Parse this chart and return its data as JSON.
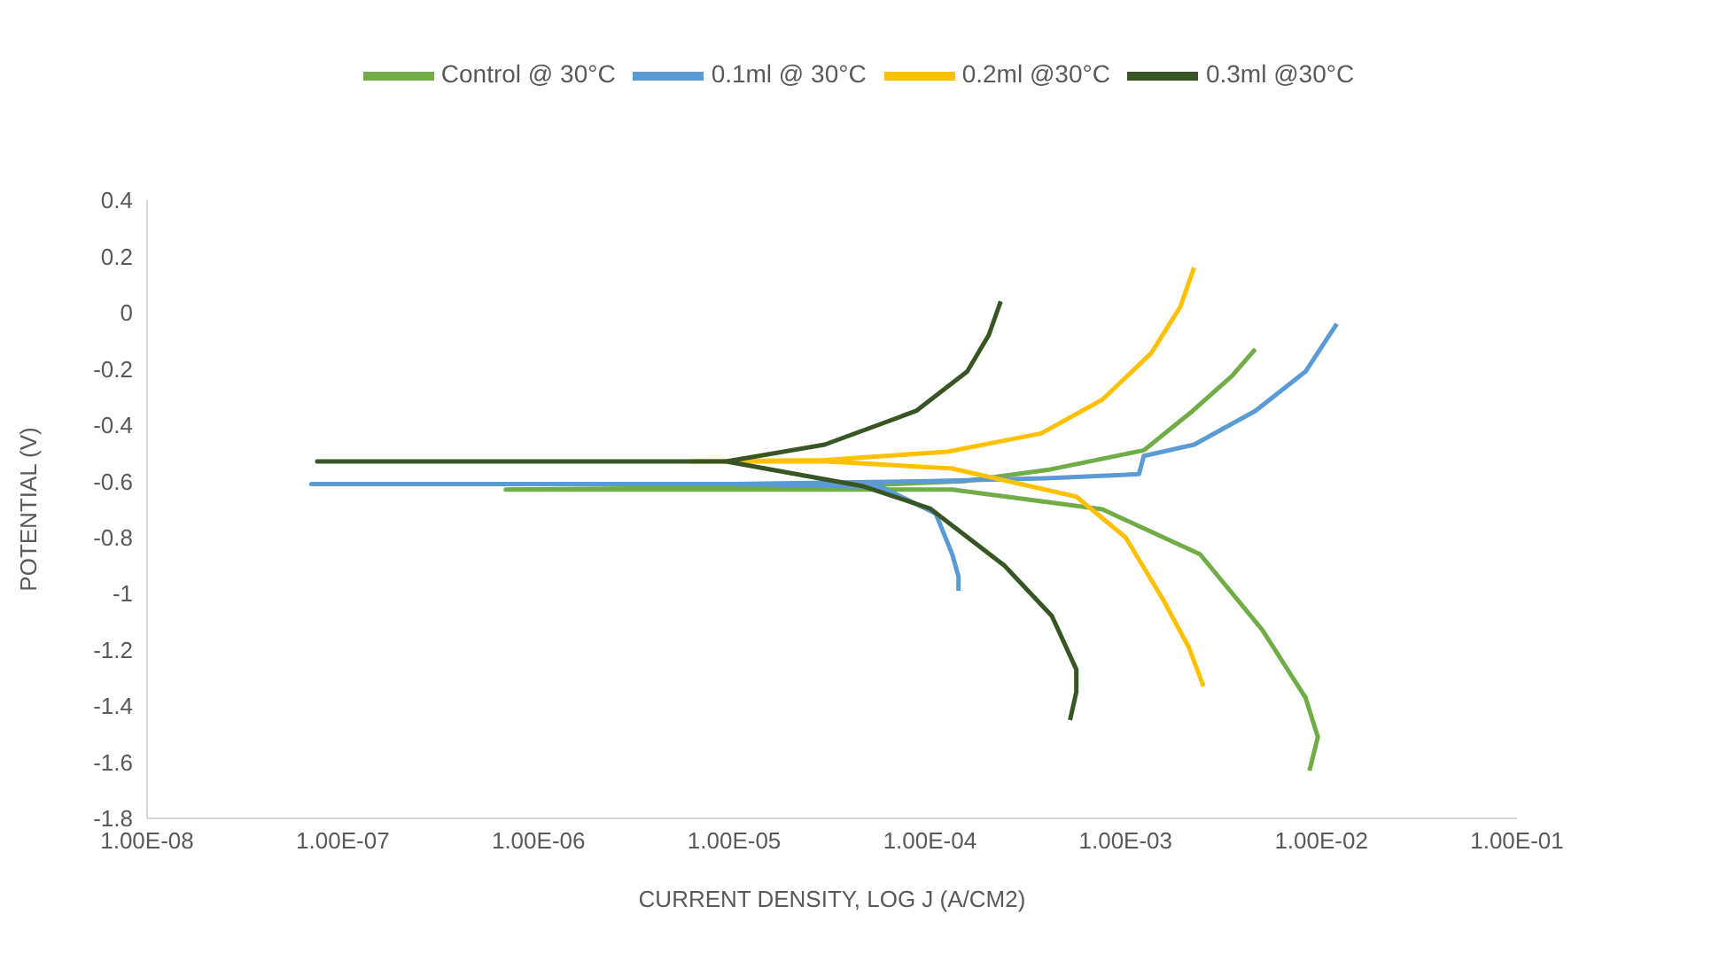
{
  "chart_data": {
    "type": "line",
    "xlabel": "CURRENT DENSITY, LOG J (A/CM2)",
    "ylabel": "POTENTIAL (V)",
    "log": "x",
    "grid": false,
    "legend": "top",
    "line_style": "solid",
    "xlim": [
      1e-08,
      0.1
    ],
    "xticks": [
      {
        "value": 1e-08,
        "label": "1.00E-08"
      },
      {
        "value": 1e-07,
        "label": "1.00E-07"
      },
      {
        "value": 1e-06,
        "label": "1.00E-06"
      },
      {
        "value": 1e-05,
        "label": "1.00E-05"
      },
      {
        "value": 0.0001,
        "label": "1.00E-04"
      },
      {
        "value": 0.001,
        "label": "1.00E-03"
      },
      {
        "value": 0.01,
        "label": "1.00E-02"
      },
      {
        "value": 0.1,
        "label": "1.00E-01"
      }
    ],
    "ylim": [
      -1.8,
      0.4
    ],
    "yticks": [
      0.4,
      0.2,
      0,
      -0.2,
      -0.4,
      -0.6,
      -0.8,
      -1,
      -1.2,
      -1.4,
      -1.6,
      -1.8
    ],
    "series": [
      {
        "name": "Control @ 30°C",
        "color": "#70ad47",
        "x": [
          0.0087,
          0.0096,
          0.0083,
          0.005,
          0.0024,
          0.00076,
          0.00013,
          1e-05,
          6.8e-07,
          3e-05,
          0.00015,
          0.0004,
          0.00124,
          0.0022,
          0.0035,
          0.0046
        ],
        "values": [
          -1.63,
          -1.51,
          -1.37,
          -1.13,
          -0.86,
          -0.7,
          -0.63,
          -0.63,
          -0.63,
          -0.62,
          -0.6,
          -0.56,
          -0.49,
          -0.35,
          -0.225,
          -0.13
        ]
      },
      {
        "name": "0.1ml @ 30°C",
        "color": "#5b9bd5",
        "x": [
          0.00014,
          0.00014,
          0.00013,
          0.000107,
          5.6e-05,
          1e-05,
          6.9e-08,
          1e-05,
          0.0001,
          0.00039,
          0.00117,
          0.00124,
          0.00224,
          0.0046,
          0.0083,
          0.012
        ],
        "values": [
          -0.99,
          -0.94,
          -0.86,
          -0.715,
          -0.62,
          -0.61,
          -0.61,
          -0.61,
          -0.6,
          -0.59,
          -0.575,
          -0.51,
          -0.47,
          -0.35,
          -0.21,
          -0.04
        ]
      },
      {
        "name": "0.2ml @30°C",
        "color": "#ffc000",
        "x": [
          0.0025,
          0.0021,
          0.00155,
          0.001,
          0.00056,
          0.00013,
          3e-05,
          6e-06,
          2.9e-05,
          0.000123,
          0.00037,
          0.00076,
          0.00135,
          0.0019,
          0.00224
        ],
        "values": [
          -1.33,
          -1.19,
          -1.02,
          -0.8,
          -0.655,
          -0.555,
          -0.53,
          -0.53,
          -0.525,
          -0.495,
          -0.43,
          -0.31,
          -0.145,
          0.02,
          0.16
        ]
      },
      {
        "name": "0.3ml @30°C",
        "color": "#375623",
        "x": [
          0.00052,
          0.00056,
          0.00056,
          0.00042,
          0.00024,
          0.0001,
          4.5e-05,
          9.1e-06,
          7.4e-08,
          9.1e-06,
          2.9e-05,
          8.5e-05,
          0.000155,
          0.0002,
          0.00023
        ],
        "values": [
          -1.45,
          -1.35,
          -1.27,
          -1.08,
          -0.9,
          -0.697,
          -0.617,
          -0.53,
          -0.53,
          -0.53,
          -0.47,
          -0.35,
          -0.21,
          -0.08,
          0.04
        ]
      }
    ]
  }
}
